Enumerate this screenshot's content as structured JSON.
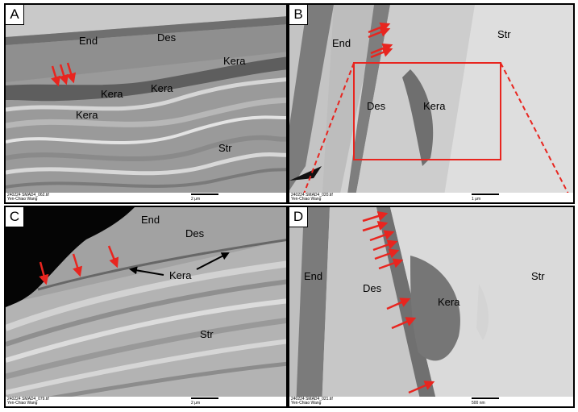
{
  "panels": {
    "A": {
      "letter": "A",
      "labels": {
        "end": "End",
        "des": "Des",
        "kera1": "Kera",
        "kera2": "Kera",
        "kera3": "Kera",
        "kera4": "Kera",
        "str": "Str"
      },
      "footer": {
        "line1": "240224 SMAD4_062.tif",
        "line2": "Yen-Chiao Wang",
        "scale": "2 μm"
      }
    },
    "B": {
      "letter": "B",
      "labels": {
        "end": "End",
        "des": "Des",
        "kera": "Kera",
        "str": "Str"
      },
      "footer": {
        "line1": "240224 SMAD4_020.tif",
        "line2": "Yen-Chiao Wang",
        "scale": "1 μm"
      }
    },
    "C": {
      "letter": "C",
      "labels": {
        "end": "End",
        "des": "Des",
        "kera": "Kera",
        "str": "Str"
      },
      "footer": {
        "line1": "240224 SMAD4_079.tif",
        "line2": "Yen-Chiao Wang",
        "scale": "2 μm"
      }
    },
    "D": {
      "letter": "D",
      "labels": {
        "end": "End",
        "des": "Des",
        "kera": "Kera",
        "str": "Str"
      },
      "footer": {
        "line1": "240224 SMAD4_021.tif",
        "line2": "Yen-Chiao Wang",
        "scale": "500 nm"
      }
    }
  },
  "colors": {
    "arrow_red": "#e8251f",
    "arrow_black": "#000000",
    "frame": "#000000"
  }
}
